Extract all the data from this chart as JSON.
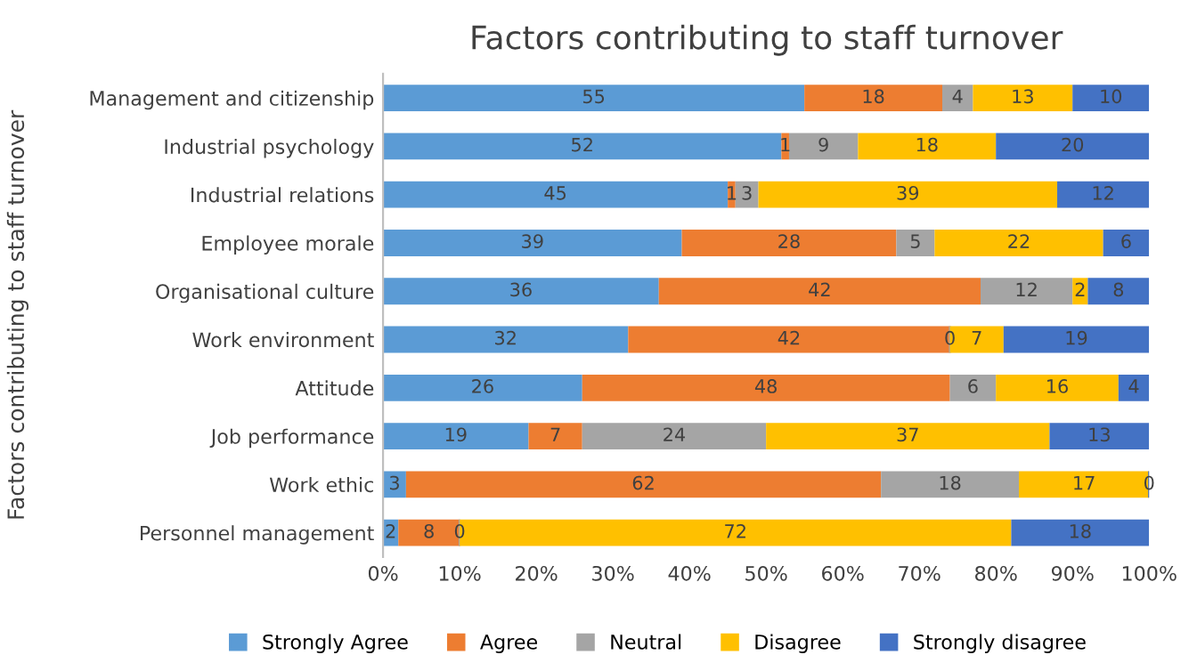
{
  "chart_data": {
    "type": "bar",
    "orientation": "horizontal",
    "stacked": true,
    "title": "Factors contributing to staff turnover",
    "ylabel": "Factors contributing to staff turnover",
    "categories": [
      "Management and citizenship",
      "Industrial psychology",
      "Industrial relations",
      "Employee morale",
      "Organisational culture",
      "Work environment",
      "Attitude",
      "Job performance",
      "Work ethic",
      "Personnel management"
    ],
    "series": [
      {
        "name": "Strongly Agree",
        "color": "#5b9bd5",
        "values": [
          55,
          52,
          45,
          39,
          36,
          32,
          26,
          19,
          3,
          2
        ]
      },
      {
        "name": "Agree",
        "color": "#ed7d31",
        "values": [
          18,
          1,
          1,
          28,
          42,
          42,
          48,
          7,
          62,
          8
        ]
      },
      {
        "name": "Neutral",
        "color": "#a5a5a5",
        "values": [
          4,
          9,
          3,
          5,
          12,
          0,
          6,
          24,
          18,
          0
        ]
      },
      {
        "name": "Disagree",
        "color": "#ffc000",
        "values": [
          13,
          18,
          39,
          22,
          2,
          7,
          16,
          37,
          17,
          72
        ]
      },
      {
        "name": "Strongly disagree",
        "color": "#4472c4",
        "values": [
          10,
          20,
          12,
          6,
          8,
          19,
          4,
          13,
          0,
          18
        ]
      }
    ],
    "xlim": [
      0,
      100
    ],
    "xticks": [
      {
        "value": 0,
        "label": "0%"
      },
      {
        "value": 10,
        "label": "10%"
      },
      {
        "value": 20,
        "label": "20%"
      },
      {
        "value": 30,
        "label": "30%"
      },
      {
        "value": 40,
        "label": "40%"
      },
      {
        "value": 50,
        "label": "50%"
      },
      {
        "value": 60,
        "label": "60%"
      },
      {
        "value": 70,
        "label": "70%"
      },
      {
        "value": 80,
        "label": "80%"
      },
      {
        "value": 90,
        "label": "90%"
      },
      {
        "value": 100,
        "label": "100%"
      }
    ],
    "data_labels": true,
    "legend": "bottom",
    "grid": false
  }
}
